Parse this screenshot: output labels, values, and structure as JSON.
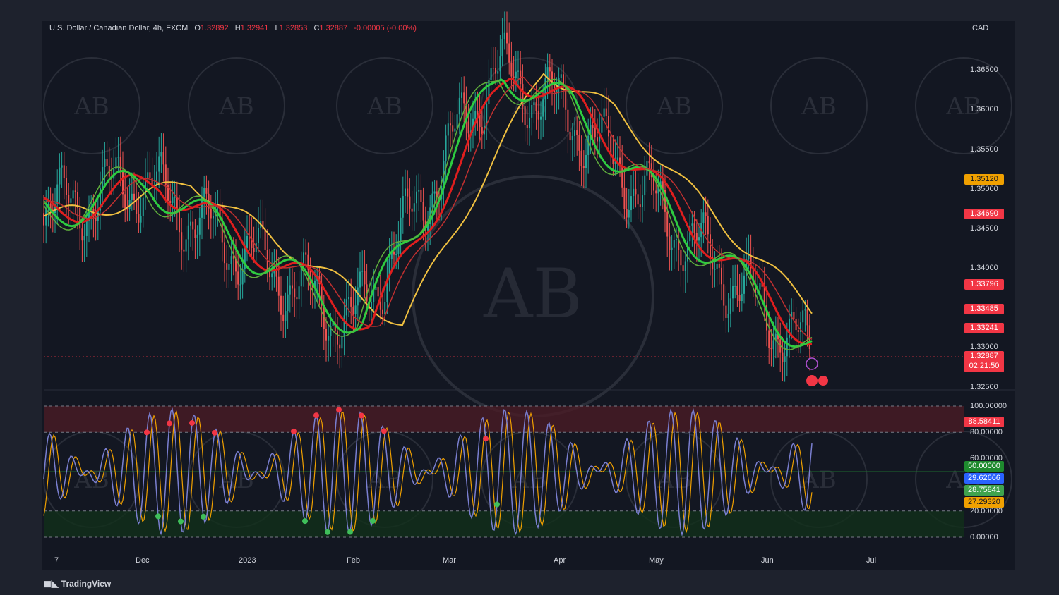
{
  "header": {
    "symbol": "U.S. Dollar / Canadian Dollar, 4h, FXCM",
    "open_label": "O",
    "open": "1.32892",
    "high_label": "H",
    "high": "1.32941",
    "low_label": "L",
    "low": "1.32853",
    "close_label": "C",
    "close": "1.32887",
    "change": "-0.00005 (-0.00%)"
  },
  "currency": "CAD",
  "price_ticks": [
    "1.36500",
    "1.36000",
    "1.35500",
    "1.35000",
    "1.34500",
    "1.34000",
    "1.33000",
    "1.32500"
  ],
  "price_badges": [
    {
      "label": "1.35120",
      "color": "#f0a000"
    },
    {
      "label": "1.34690",
      "color": "#f23645"
    },
    {
      "label": "1.33796",
      "color": "#f23645"
    },
    {
      "label": "1.33485",
      "color": "#f23645"
    },
    {
      "label": "1.33241",
      "color": "#f23645"
    }
  ],
  "last_price": {
    "price": "1.32887",
    "countdown": "02:21:50",
    "color": "#f23645"
  },
  "osc_ticks": [
    "100.00000",
    "80.00000",
    "60.00000",
    "20.00000",
    "0.00000"
  ],
  "osc_badges": [
    {
      "label": "88.58411",
      "color": "#f23645"
    },
    {
      "label": "50.00000",
      "color": "#1e8a2e"
    },
    {
      "label": "29.62666",
      "color": "#2962ff"
    },
    {
      "label": "28.75841",
      "color": "#3fa34d"
    },
    {
      "label": "27.29320",
      "color": "#f0a000"
    }
  ],
  "x_labels": [
    "7",
    "Dec",
    "2023",
    "Feb",
    "Mar",
    "Apr",
    "May",
    "Jun",
    "Jul"
  ],
  "watermark": "AB",
  "brand": "TradingView",
  "colors": {
    "up": "#26a69a",
    "down": "#ef5350",
    "ma_fast_up": "#2ecc40",
    "ma_slow": "#f0c040",
    "ma_red": "#e01e1e"
  },
  "chart_data": [
    {
      "type": "line",
      "title": "U.S. Dollar / Canadian Dollar, 4h, FXCM",
      "x": [
        "7",
        "Dec",
        "2023",
        "Feb",
        "Mar",
        "Apr",
        "May",
        "Jun"
      ],
      "series": [
        {
          "values": [
            1.347,
            1.351,
            1.343,
            1.333,
            1.365,
            1.36,
            1.345,
            1.329
          ]
        }
      ],
      "ylabel": "CAD",
      "ylim": [
        1.323,
        1.3685
      ],
      "grid": false,
      "legend": "none"
    },
    {
      "type": "line",
      "x": [
        "7",
        "Dec",
        "2023",
        "Feb",
        "Mar",
        "Apr",
        "May",
        "Jun"
      ],
      "series": [
        {
          "values": [
            90,
            5,
            95,
            3,
            98,
            2,
            96,
            27
          ]
        }
      ],
      "ylim": [
        0,
        100
      ],
      "grid": false,
      "legend": "none",
      "levels": [
        100,
        80,
        50,
        20,
        0
      ]
    }
  ]
}
